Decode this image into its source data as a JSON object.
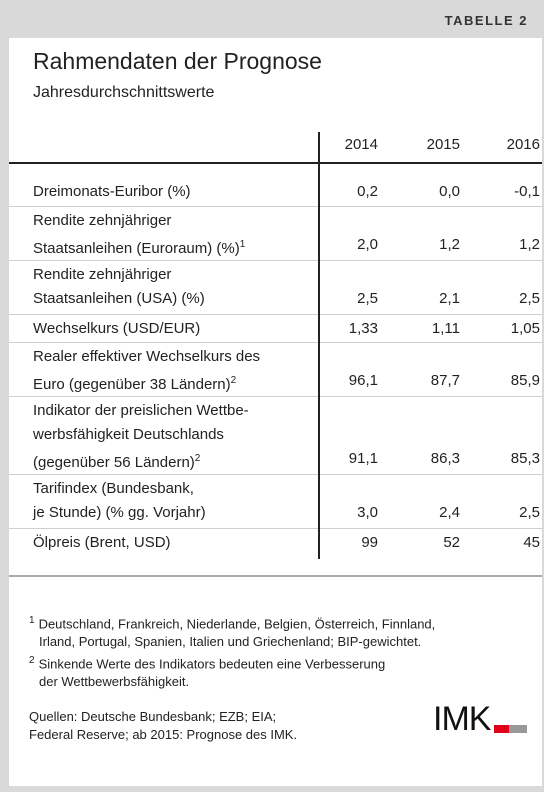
{
  "header": {
    "label": "TABELLE 2",
    "title": "Rahmendaten der Prognose",
    "subtitle": "Jahresdurchschnittswerte"
  },
  "table": {
    "columns": [
      "2014",
      "2015",
      "2016"
    ],
    "rows": [
      {
        "label": [
          "Dreimonats-Euribor (%)"
        ],
        "values": [
          "0,2",
          "0,0",
          "-0,1"
        ]
      },
      {
        "label": [
          "Rendite zehnjähriger",
          "Staatsanleihen (Euroraum) (%)"
        ],
        "footnote": "1",
        "values": [
          "2,0",
          "1,2",
          "1,2"
        ]
      },
      {
        "label": [
          "Rendite zehnjähriger",
          "Staatsanleihen (USA) (%)"
        ],
        "values": [
          "2,5",
          "2,1",
          "2,5"
        ]
      },
      {
        "label": [
          "Wechselkurs (USD/EUR)"
        ],
        "values": [
          "1,33",
          "1,11",
          "1,05"
        ]
      },
      {
        "label": [
          "Realer effektiver Wechselkurs des",
          "Euro (gegenüber 38 Ländern)"
        ],
        "footnote": "2",
        "values": [
          "96,1",
          "87,7",
          "85,9"
        ]
      },
      {
        "label": [
          "Indikator der preislichen Wettbe-",
          "werbsfähigkeit Deutschlands",
          "(gegenüber 56 Ländern)"
        ],
        "footnote": "2",
        "values": [
          "91,1",
          "86,3",
          "85,3"
        ]
      },
      {
        "label": [
          "Tarifindex (Bundesbank,",
          "je Stunde) (% gg. Vorjahr)"
        ],
        "values": [
          "3,0",
          "2,4",
          "2,5"
        ]
      },
      {
        "label": [
          "Ölpreis (Brent, USD)"
        ],
        "values": [
          "99",
          "52",
          "45"
        ]
      }
    ]
  },
  "footnotes": [
    {
      "marker": "1",
      "lines": [
        "Deutschland, Frankreich, Niederlande, Belgien, Österreich, Finnland,",
        "Irland, Portugal, Spanien, Italien und Griechenland; BIP-gewichtet."
      ]
    },
    {
      "marker": "2",
      "lines": [
        "Sinkende Werte des Indikators bedeuten eine Verbesserung",
        "der Wettbewerbsfähigkeit."
      ]
    }
  ],
  "sources": [
    "Quellen: Deutsche Bundesbank; EZB; EIA;",
    "Federal Reserve; ab 2015: Prognose des IMK."
  ],
  "logo": "IMK"
}
